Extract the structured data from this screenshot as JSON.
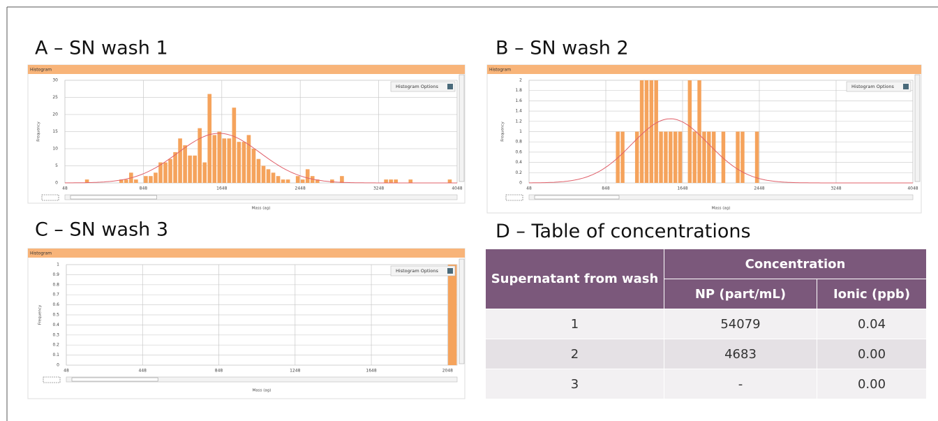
{
  "chart_data": [
    {
      "type": "histogram",
      "title": "A – SN wash 1",
      "header": "Histogram",
      "options_label": "Histogram Options",
      "ylabel": "Frequency",
      "xlabel": "Mass (ag)",
      "bins": [
        48,
        98,
        148,
        198,
        248,
        298,
        348,
        398,
        448,
        498,
        548,
        598,
        648,
        698,
        748,
        798,
        848,
        898,
        948,
        998,
        1048,
        1098,
        1148,
        1198,
        1248,
        1298,
        1348,
        1398,
        1448,
        1498,
        1548,
        1598,
        1648,
        1698,
        1748,
        1798,
        1848,
        1898,
        1948,
        1998,
        2048,
        2098,
        2148,
        2198,
        2248,
        2298,
        2348,
        2398,
        2448,
        2498,
        2548,
        2598,
        2648,
        2698,
        2748,
        2798,
        2848,
        2898,
        2948,
        2998,
        3048,
        3098,
        3148,
        3198,
        3248,
        3298,
        3348,
        3398,
        3448,
        3498,
        3548,
        3598,
        3648,
        3698,
        3748,
        3798,
        3848,
        3898,
        3948,
        3998,
        4048
      ],
      "counts": [
        0,
        0,
        0,
        0,
        1,
        0,
        0,
        0,
        0,
        0,
        0,
        1,
        1,
        3,
        1,
        0,
        2,
        2,
        3,
        6,
        6,
        7,
        9,
        13,
        11,
        8,
        8,
        16,
        6,
        26,
        14,
        15,
        13,
        13,
        22,
        12,
        12,
        14,
        10,
        7,
        5,
        4,
        3,
        2,
        1,
        1,
        0,
        2,
        1,
        4,
        2,
        1,
        0,
        0,
        1,
        0,
        2,
        0,
        0,
        0,
        0,
        0,
        0,
        0,
        0,
        1,
        1,
        1,
        0,
        0,
        1,
        0,
        0,
        0,
        0,
        0,
        0,
        0,
        1,
        0
      ],
      "color": "#f5a35c",
      "xlim": [
        48,
        4048
      ],
      "ylim": [
        0,
        30
      ],
      "xticks": [
        48,
        848,
        1648,
        2448,
        3248,
        4048
      ],
      "yticks": [
        0,
        5,
        10,
        15,
        20,
        25,
        30
      ],
      "grid": true,
      "fit": {
        "mean": 1620,
        "sd": 420,
        "peak": 14.5,
        "color": "#e0606a"
      }
    },
    {
      "type": "histogram",
      "title": "B – SN wash 2",
      "header": "Histogram",
      "options_label": "Histogram Options",
      "ylabel": "Frequency",
      "xlabel": "Mass (ag)",
      "bins": [
        48,
        98,
        148,
        198,
        248,
        298,
        348,
        398,
        448,
        498,
        548,
        598,
        648,
        698,
        748,
        798,
        848,
        898,
        948,
        998,
        1048,
        1098,
        1148,
        1198,
        1248,
        1298,
        1348,
        1398,
        1448,
        1498,
        1548,
        1598,
        1648,
        1698,
        1748,
        1798,
        1848,
        1898,
        1948,
        1998,
        2048,
        2098,
        2148,
        2198,
        2248,
        2298,
        2348,
        2398,
        2448,
        2498,
        2548,
        2598,
        2648,
        2698,
        2748,
        2798,
        2848,
        2898,
        2948,
        2998,
        3048,
        3098,
        3148,
        3198,
        3248,
        3298,
        3348,
        3398,
        3448,
        3498,
        3548,
        3598,
        3648,
        3698,
        3748,
        3798,
        3848,
        3898,
        3948,
        3998,
        4048
      ],
      "counts": [
        0,
        0,
        0,
        0,
        0,
        0,
        0,
        0,
        0,
        0,
        0,
        0,
        0,
        0,
        0,
        0,
        0,
        0,
        1,
        1,
        0,
        0,
        1,
        2,
        2,
        2,
        2,
        1,
        1,
        1,
        1,
        1,
        0,
        2,
        1,
        2,
        1,
        1,
        1,
        0,
        1,
        0,
        0,
        1,
        1,
        0,
        0,
        1,
        0,
        0,
        0,
        0,
        0,
        0,
        0,
        0,
        0,
        0,
        0,
        0,
        0,
        0,
        0,
        0,
        0,
        0,
        0,
        0,
        0,
        0,
        0,
        0,
        0,
        0,
        0,
        0,
        0,
        0,
        0,
        0
      ],
      "color": "#f5a35c",
      "xlim": [
        48,
        4048
      ],
      "ylim": [
        0,
        2
      ],
      "xticks": [
        48,
        848,
        1648,
        2448,
        3248,
        4048
      ],
      "yticks": [
        0,
        0.2,
        0.4,
        0.6,
        0.8,
        1,
        1.2,
        1.4,
        1.6,
        1.8,
        2
      ],
      "grid": true,
      "fit": {
        "mean": 1520,
        "sd": 400,
        "peak": 1.25,
        "color": "#e0606a"
      }
    },
    {
      "type": "histogram",
      "title": "C – SN wash 3",
      "header": "Histogram",
      "options_label": "Histogram Options",
      "ylabel": "Frequency",
      "xlabel": "Mass (ag)",
      "bins": [
        48,
        98,
        148,
        198,
        248,
        298,
        348,
        398,
        448,
        498,
        548,
        598,
        648,
        698,
        748,
        798,
        848,
        898,
        948,
        998,
        1048,
        1098,
        1148,
        1198,
        1248,
        1298,
        1348,
        1398,
        1448,
        1498,
        1548,
        1598,
        1648,
        1698,
        1748,
        1798,
        1848,
        1898,
        1948,
        1998,
        2048,
        2098
      ],
      "counts": [
        0,
        0,
        0,
        0,
        0,
        0,
        0,
        0,
        0,
        0,
        0,
        0,
        0,
        0,
        0,
        0,
        0,
        0,
        0,
        0,
        0,
        0,
        0,
        0,
        0,
        0,
        0,
        0,
        0,
        0,
        0,
        0,
        0,
        0,
        0,
        0,
        0,
        0,
        0,
        0,
        1
      ],
      "color": "#f5a35c",
      "xlim": [
        48,
        2098
      ],
      "ylim": [
        0,
        1
      ],
      "xticks": [
        48,
        448,
        848,
        1248,
        1648,
        2048
      ],
      "yticks": [
        0,
        0.1,
        0.2,
        0.3,
        0.4,
        0.5,
        0.6,
        0.7,
        0.8,
        0.9,
        1
      ],
      "grid": true
    }
  ],
  "table": {
    "title": "D – Table of concentrations",
    "header": {
      "row_label": "Supernatant from wash",
      "group": "Concentration",
      "columns": [
        "NP (part/mL)",
        "Ionic (ppb)"
      ]
    },
    "rows": [
      [
        "1",
        "54079",
        "0.04"
      ],
      [
        "2",
        "4683",
        "0.00"
      ],
      [
        "3",
        "-",
        "0.00"
      ]
    ]
  }
}
